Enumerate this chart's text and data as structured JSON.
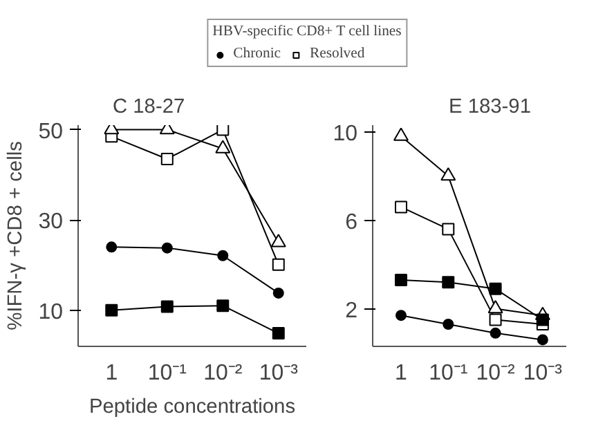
{
  "chart_data": [
    {
      "type": "line",
      "title": "C 18-27",
      "ylabel": "%IFN-γ +CD8 + cells",
      "xlabel": "Peptide concentrations",
      "legend_title": "HBV-specific CD8+ T cell lines",
      "legend": "top",
      "categories": [
        "1",
        "10⁻¹",
        "10⁻²",
        "10⁻³"
      ],
      "ylim": [
        2,
        51
      ],
      "yticks": [
        10,
        30,
        50
      ],
      "grid": false,
      "series": [
        {
          "name": "Chronic",
          "color": "#000000",
          "marker": "circle",
          "values": [
            24.0,
            23.8,
            22.1,
            13.8
          ]
        },
        {
          "color": "#000000",
          "marker": "square",
          "values": [
            10.0,
            10.8,
            11.0,
            4.9
          ]
        },
        {
          "color": "#ffffff",
          "marker": "triangle",
          "values": [
            50.0,
            50.0,
            45.8,
            25.0
          ]
        },
        {
          "name": "Resolved",
          "color": "#ffffff",
          "marker": "square",
          "values": [
            48.5,
            43.5,
            50.0,
            20.1
          ]
        }
      ]
    },
    {
      "type": "line",
      "title": "E 183-91",
      "categories": [
        "1",
        "10⁻¹",
        "10⁻²",
        "10⁻³"
      ],
      "ylim": [
        0.3,
        10.3
      ],
      "yticks": [
        2,
        6,
        10
      ],
      "grid": false,
      "series": [
        {
          "color": "#000000",
          "marker": "circle",
          "values": [
            1.7,
            1.3,
            0.9,
            0.6
          ]
        },
        {
          "color": "#000000",
          "marker": "square",
          "values": [
            3.3,
            3.2,
            2.9,
            1.5
          ]
        },
        {
          "color": "#ffffff",
          "marker": "triangle",
          "values": [
            9.8,
            8.0,
            2.0,
            1.7
          ]
        },
        {
          "color": "#ffffff",
          "marker": "square",
          "values": [
            6.6,
            5.6,
            1.5,
            1.3
          ]
        }
      ]
    }
  ]
}
